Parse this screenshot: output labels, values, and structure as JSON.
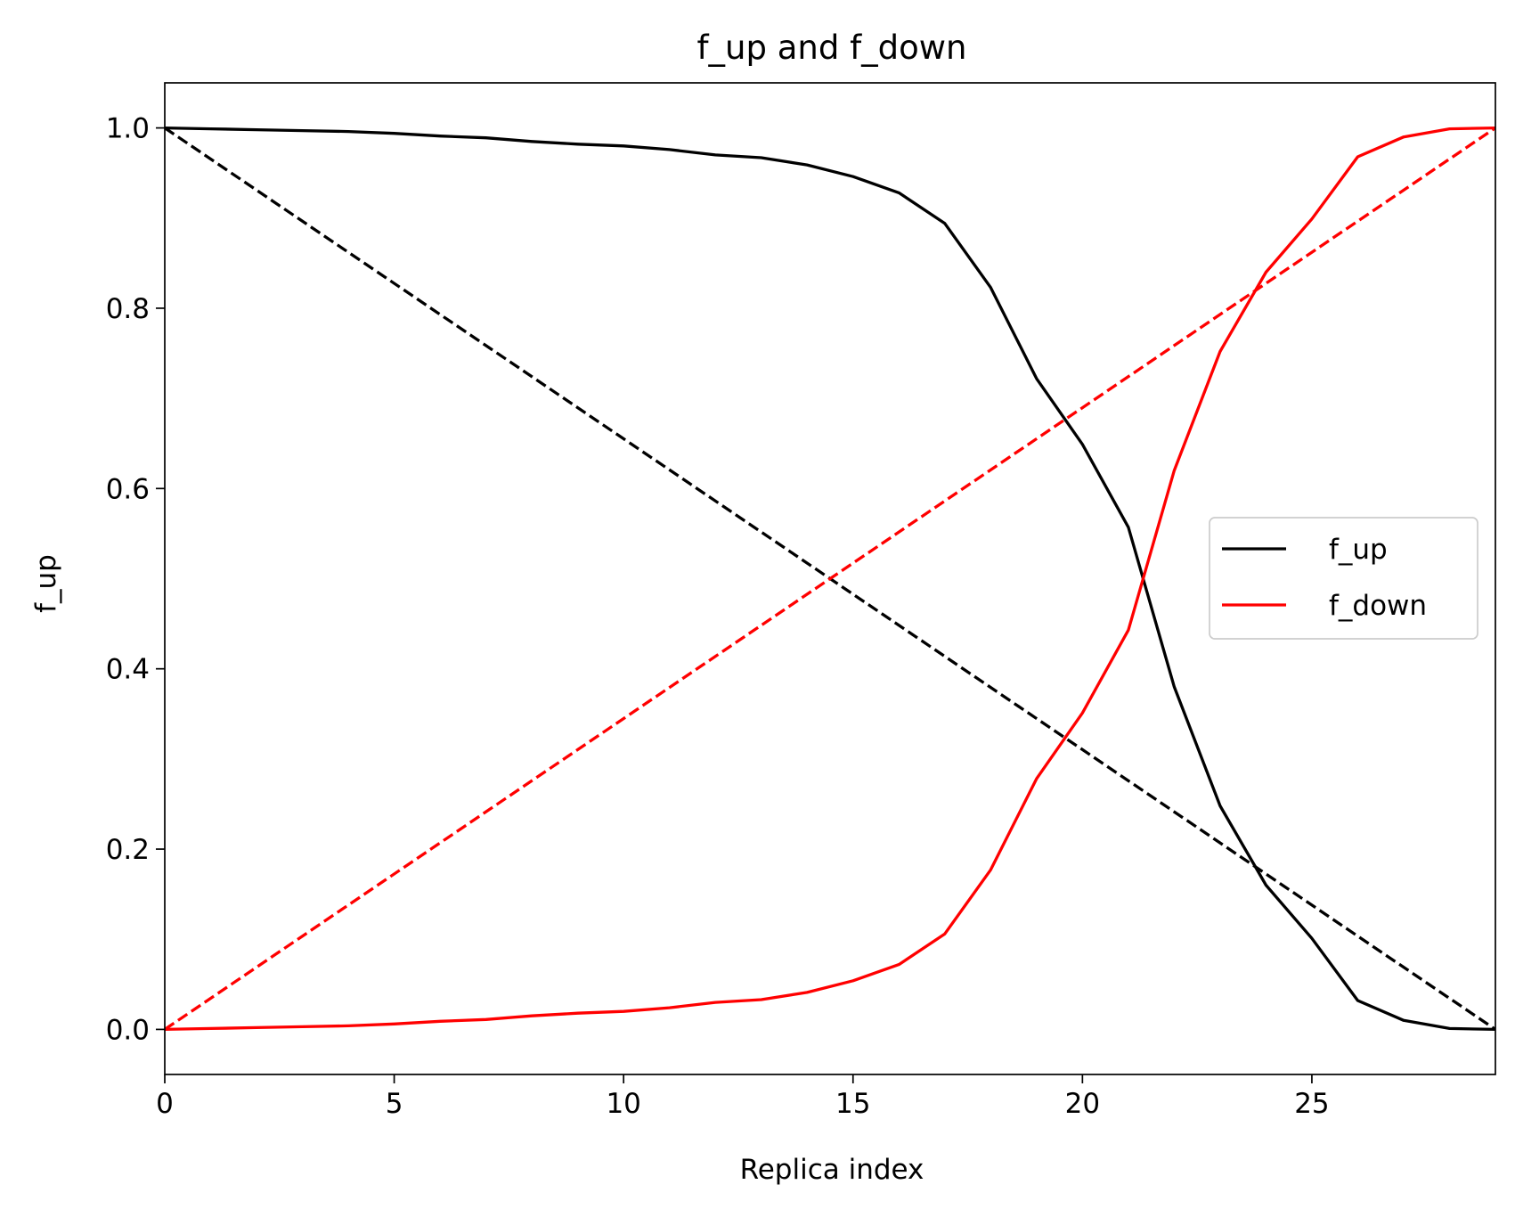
{
  "chart_data": {
    "type": "line",
    "title": "f_up and f_down",
    "xlabel": "Replica index",
    "ylabel": "f_up",
    "xlim": [
      0,
      29
    ],
    "ylim": [
      -0.05,
      1.05
    ],
    "xticks": [
      0,
      5,
      10,
      15,
      20,
      25
    ],
    "yticks": [
      0.0,
      0.2,
      0.4,
      0.6,
      0.8,
      1.0
    ],
    "xtick_labels": [
      "0",
      "5",
      "10",
      "15",
      "20",
      "25"
    ],
    "ytick_labels": [
      "0.0",
      "0.2",
      "0.4",
      "0.6",
      "0.8",
      "1.0"
    ],
    "grid": false,
    "legend_position": "center-right",
    "x": [
      0,
      1,
      2,
      3,
      4,
      5,
      6,
      7,
      8,
      9,
      10,
      11,
      12,
      13,
      14,
      15,
      16,
      17,
      18,
      19,
      20,
      21,
      22,
      23,
      24,
      25,
      26,
      27,
      28,
      29
    ],
    "series": [
      {
        "name": "f_up",
        "color": "#000000",
        "style": "solid",
        "values": [
          1.0,
          0.999,
          0.998,
          0.997,
          0.996,
          0.994,
          0.991,
          0.989,
          0.985,
          0.982,
          0.98,
          0.976,
          0.97,
          0.967,
          0.959,
          0.946,
          0.928,
          0.894,
          0.823,
          0.722,
          0.649,
          0.557,
          0.38,
          0.248,
          0.16,
          0.101,
          0.032,
          0.01,
          0.001,
          0.0
        ]
      },
      {
        "name": "f_down",
        "color": "#ff0000",
        "style": "solid",
        "values": [
          0.0,
          0.001,
          0.002,
          0.003,
          0.004,
          0.006,
          0.009,
          0.011,
          0.015,
          0.018,
          0.02,
          0.024,
          0.03,
          0.033,
          0.041,
          0.054,
          0.072,
          0.106,
          0.177,
          0.278,
          0.351,
          0.443,
          0.62,
          0.752,
          0.84,
          0.899,
          0.968,
          0.99,
          0.999,
          1.0
        ]
      }
    ],
    "reference_lines": [
      {
        "color": "#000000",
        "style": "dashed",
        "points": [
          [
            0,
            1.0
          ],
          [
            29,
            0.0
          ]
        ]
      },
      {
        "color": "#ff0000",
        "style": "dashed",
        "points": [
          [
            0,
            0.0
          ],
          [
            29,
            1.0
          ]
        ]
      }
    ]
  }
}
